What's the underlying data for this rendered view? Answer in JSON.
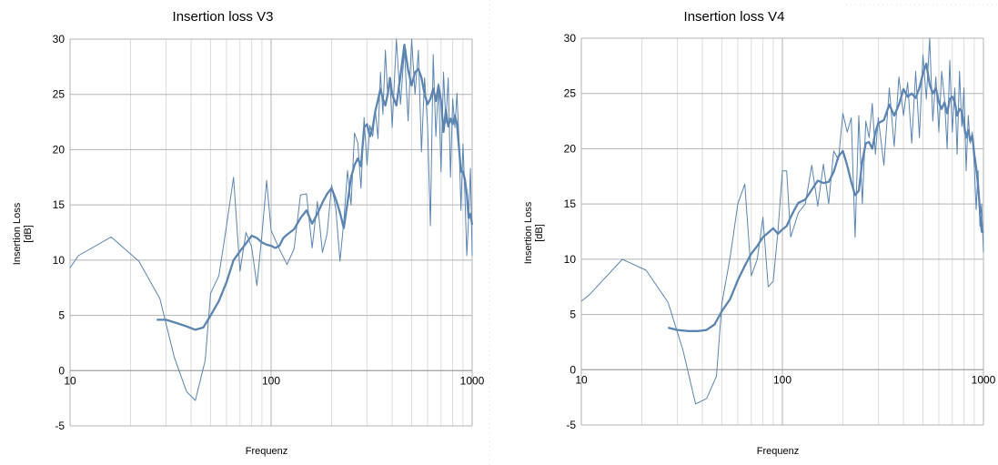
{
  "chart_data": [
    {
      "type": "line",
      "title": "Insertion loss V3",
      "xlabel": "Frequenz",
      "ylabel_lines": [
        "Insertion Loss",
        "[dB]"
      ],
      "x_scale": "log",
      "xlim": [
        10,
        1000
      ],
      "ylim": [
        -5,
        30
      ],
      "x_ticks": [
        "10",
        "100",
        "1000"
      ],
      "y_ticks": [
        "30",
        "25",
        "20",
        "15",
        "10",
        "5",
        "0",
        "-5"
      ],
      "grid": true,
      "series": [
        {
          "style": "thin",
          "x": [
            10,
            11,
            16,
            22,
            28,
            33,
            38,
            42,
            47,
            50,
            55,
            60,
            65,
            70,
            75,
            80,
            85,
            90,
            95,
            100,
            110,
            120,
            130,
            140,
            150,
            160,
            170,
            180,
            190,
            200,
            210,
            220,
            230,
            240,
            250,
            260,
            270,
            280,
            290,
            300,
            310,
            320,
            330,
            340,
            350,
            360,
            370,
            380,
            390,
            400,
            420,
            440,
            460,
            480,
            500,
            520,
            540,
            560,
            580,
            600,
            620,
            640,
            660,
            680,
            700,
            720,
            740,
            760,
            780,
            800,
            820,
            840,
            860,
            880,
            900,
            920,
            940,
            960,
            980,
            1000
          ],
          "y": [
            9.3,
            10.4,
            12.1,
            9.9,
            6.5,
            1.2,
            -1.9,
            -2.7,
            0.9,
            7.0,
            8.6,
            13.1,
            17.5,
            9.0,
            12.5,
            11.2,
            7.7,
            12.3,
            17.2,
            12.7,
            11.0,
            9.6,
            11.0,
            15.9,
            16.0,
            11.1,
            15.3,
            10.7,
            12.4,
            16.8,
            14.6,
            9.9,
            13.5,
            18.1,
            15.0,
            21.5,
            20.6,
            16.5,
            22.9,
            18.6,
            22.2,
            21.2,
            23.5,
            21.0,
            27.0,
            23.2,
            29.0,
            25.0,
            26.5,
            22.0,
            30.0,
            24.1,
            29.1,
            22.6,
            30.0,
            25.0,
            29.0,
            19.8,
            26.5,
            22.2,
            13.1,
            28.6,
            21.2,
            26.0,
            18.0,
            27.0,
            22.4,
            26.5,
            17.5,
            24.6,
            22.0,
            25.1,
            20.9,
            14.5,
            20.5,
            16.0,
            10.4,
            13.8,
            18.3,
            10.4
          ]
        },
        {
          "style": "thick",
          "x": [
            27,
            30,
            34,
            38,
            42,
            46,
            50,
            55,
            60,
            65,
            70,
            75,
            80,
            85,
            90,
            95,
            100,
            105,
            110,
            115,
            120,
            130,
            140,
            150,
            160,
            170,
            180,
            190,
            200,
            210,
            220,
            230,
            240,
            250,
            260,
            270,
            280,
            290,
            300,
            310,
            320,
            330,
            340,
            350,
            360,
            370,
            380,
            390,
            400,
            420,
            440,
            460,
            480,
            500,
            520,
            540,
            560,
            580,
            600,
            620,
            640,
            660,
            680,
            700,
            720,
            740,
            760,
            780,
            800,
            820,
            840,
            860,
            880,
            900,
            920,
            940,
            960,
            980,
            1000
          ],
          "y": [
            4.6,
            4.6,
            4.3,
            4.0,
            3.7,
            3.9,
            5.0,
            6.3,
            8.0,
            10.0,
            10.8,
            11.5,
            12.2,
            12.0,
            11.6,
            11.4,
            11.3,
            11.1,
            11.3,
            12.0,
            12.3,
            12.8,
            13.8,
            14.5,
            13.3,
            14.2,
            15.2,
            16.0,
            16.5,
            15.5,
            14.3,
            12.9,
            15.2,
            17.5,
            18.6,
            19.2,
            18.5,
            22.0,
            22.3,
            21.2,
            22.0,
            23.5,
            24.5,
            25.5,
            24.6,
            24.0,
            25.0,
            26.5,
            25.0,
            24.0,
            26.7,
            29.5,
            27.2,
            25.8,
            27.0,
            27.3,
            26.5,
            25.0,
            24.1,
            24.6,
            25.5,
            24.4,
            25.8,
            24.4,
            21.6,
            23.6,
            22.1,
            22.8,
            22.3,
            23.1,
            22.3,
            20.2,
            18.0,
            18.0,
            17.3,
            16.0,
            13.8,
            14.2,
            13.2
          ]
        }
      ]
    },
    {
      "type": "line",
      "title": "Insertion loss V4",
      "xlabel": "Frequenz",
      "ylabel_lines": [
        "Insertion Loss",
        "[dB]"
      ],
      "x_scale": "log",
      "xlim": [
        10,
        1000
      ],
      "ylim": [
        -5,
        30
      ],
      "x_ticks": [
        "10",
        "100",
        "1000"
      ],
      "y_ticks": [
        "30",
        "25",
        "20",
        "15",
        "10",
        "5",
        "0",
        "-5"
      ],
      "grid": true,
      "series": [
        {
          "style": "thin",
          "x": [
            10,
            11,
            16,
            21,
            27,
            32,
            37,
            42,
            47,
            50,
            55,
            60,
            65,
            70,
            75,
            80,
            85,
            90,
            95,
            100,
            105,
            110,
            120,
            130,
            140,
            150,
            160,
            170,
            180,
            190,
            200,
            210,
            220,
            230,
            240,
            250,
            260,
            270,
            280,
            290,
            300,
            320,
            340,
            360,
            380,
            400,
            420,
            440,
            460,
            480,
            500,
            520,
            540,
            560,
            580,
            600,
            620,
            640,
            660,
            680,
            700,
            720,
            740,
            760,
            780,
            800,
            820,
            840,
            860,
            880,
            900,
            920,
            940,
            960,
            980,
            1000
          ],
          "y": [
            6.2,
            6.8,
            10.0,
            9.0,
            6.1,
            1.8,
            -3.1,
            -2.6,
            -0.6,
            6.0,
            10.2,
            15.0,
            16.8,
            8.5,
            10.0,
            13.8,
            7.5,
            8.0,
            12.5,
            18.0,
            18.0,
            12.0,
            14.2,
            15.0,
            18.5,
            14.8,
            18.6,
            15.0,
            19.8,
            19.0,
            23.2,
            21.5,
            22.8,
            12.0,
            23.0,
            15.0,
            22.5,
            21.0,
            24.1,
            19.5,
            22.8,
            18.5,
            25.5,
            20.2,
            26.5,
            23.0,
            26.0,
            20.5,
            27.0,
            21.0,
            28.5,
            24.5,
            30.0,
            22.5,
            26.5,
            21.5,
            27.0,
            24.5,
            20.0,
            28.0,
            21.5,
            25.5,
            19.5,
            27.0,
            22.0,
            25.5,
            18.0,
            23.0,
            20.5,
            21.5,
            18.5,
            14.5,
            18.0,
            13.0,
            15.0,
            10.6
          ]
        },
        {
          "style": "thick",
          "x": [
            27,
            30,
            34,
            38,
            42,
            46,
            50,
            55,
            60,
            65,
            70,
            75,
            80,
            85,
            90,
            95,
            100,
            105,
            110,
            115,
            120,
            130,
            140,
            150,
            160,
            170,
            180,
            190,
            200,
            210,
            220,
            230,
            240,
            250,
            260,
            270,
            280,
            290,
            300,
            320,
            340,
            360,
            380,
            400,
            420,
            440,
            460,
            480,
            500,
            520,
            540,
            560,
            580,
            600,
            620,
            640,
            660,
            680,
            700,
            720,
            740,
            760,
            780,
            800,
            820,
            840,
            860,
            880,
            900,
            920,
            940,
            960,
            980,
            1000
          ],
          "y": [
            3.8,
            3.6,
            3.5,
            3.5,
            3.6,
            4.1,
            5.3,
            6.4,
            8.1,
            9.4,
            10.5,
            11.2,
            12.0,
            12.4,
            12.8,
            12.3,
            12.7,
            13.0,
            13.8,
            14.5,
            15.1,
            15.4,
            16.3,
            17.1,
            16.9,
            17.0,
            17.9,
            19.3,
            19.8,
            18.5,
            17.0,
            15.8,
            16.2,
            18.9,
            20.5,
            20.6,
            20.0,
            21.5,
            22.3,
            22.6,
            24.0,
            23.0,
            24.0,
            25.4,
            24.7,
            25.0,
            24.6,
            25.5,
            26.8,
            27.7,
            25.8,
            25.0,
            25.5,
            24.2,
            23.6,
            24.2,
            23.2,
            24.5,
            24.7,
            24.2,
            23.0,
            23.6,
            23.4,
            22.2,
            21.0,
            21.7,
            20.7,
            21.2,
            19.5,
            18.3,
            16.7,
            14.5,
            12.5,
            12.4
          ]
        }
      ]
    }
  ],
  "colors": {
    "line": "#5b84b1",
    "grid": "#b3b3b3",
    "axis": "#b3b3b3"
  }
}
